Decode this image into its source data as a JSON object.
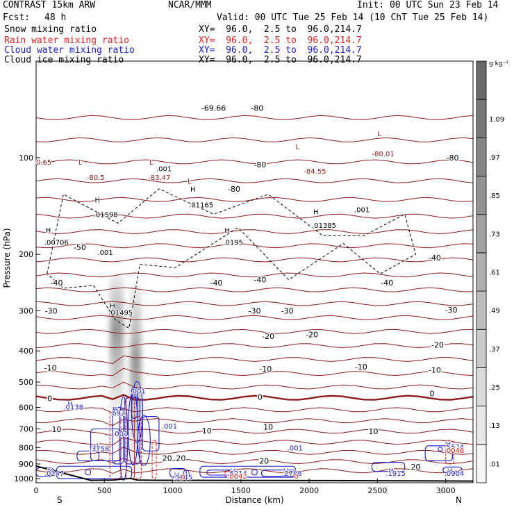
{
  "header": {
    "model": "CONTRAST 15km ARW",
    "center": "NCAR/MMM",
    "init": "Init: 00 UTC Sun 23 Feb 14",
    "fcst_label": "Fcst:",
    "fcst_value": "48 h",
    "valid": "Valid: 00 UTC Tue 25 Feb 14 (10 ChT Tue 25 Feb 14)"
  },
  "legend": [
    {
      "label": "Snow mixing ratio",
      "xy": "XY=  96.0,  2.5 to  96.0,214.7",
      "color": "#000000"
    },
    {
      "label": "Rain water mixing ratio",
      "xy": "XY=  96.0,  2.5 to  96.0,214.7",
      "color": "#e02020"
    },
    {
      "label": "Cloud water mixing ratio",
      "xy": "XY=  96.0,  2.5 to  96.0,214.7",
      "color": "#1a1ad0"
    },
    {
      "label": "Cloud ice mixing ratio",
      "xy": "XY=  96.0,  2.5 to  96.0,214.7",
      "color": "#000000"
    }
  ],
  "chart_data": {
    "type": "contour",
    "xlabel": "Distance (km)",
    "ylabel": "Pressure (hPa)",
    "xlim": [
      0,
      3200
    ],
    "ylim": [
      1030,
      50
    ],
    "x_ticks": [
      0,
      500,
      1000,
      1500,
      2000,
      2500,
      3000
    ],
    "y_ticks": [
      100,
      200,
      300,
      400,
      500,
      600,
      700,
      800,
      900,
      1000
    ],
    "x_end_labels": {
      "left": "S",
      "right": "N"
    },
    "colorbar": {
      "unit": "g kg⁻¹",
      "labels": [
        ".01",
        ".13",
        ".25",
        ".37",
        ".49",
        ".61",
        ".73",
        ".85",
        ".97",
        "1.09"
      ]
    },
    "temperature_contours": [
      {
        "label": "-80",
        "x": 1640,
        "p": 105
      },
      {
        "label": "-80",
        "x": 1450,
        "p": 125
      },
      {
        "label": "-80",
        "x": 3050,
        "p": 100
      },
      {
        "label": "-69.66",
        "x": 1300,
        "p": 70
      },
      {
        "label": "-80",
        "x": 1620,
        "p": 70
      },
      {
        "label": "-50",
        "x": 320,
        "p": 190
      },
      {
        "label": "-40",
        "x": 150,
        "p": 245
      },
      {
        "label": "-40",
        "x": 1320,
        "p": 245
      },
      {
        "label": "-40",
        "x": 1640,
        "p": 240
      },
      {
        "label": "-40",
        "x": 2570,
        "p": 245
      },
      {
        "label": "-40",
        "x": 2920,
        "p": 205
      },
      {
        "label": "-30",
        "x": 110,
        "p": 300
      },
      {
        "label": "-30",
        "x": 1600,
        "p": 300
      },
      {
        "label": "-30",
        "x": 1840,
        "p": 300
      },
      {
        "label": "-30",
        "x": 3040,
        "p": 298
      },
      {
        "label": "-20",
        "x": 1700,
        "p": 360
      },
      {
        "label": "-20",
        "x": 2020,
        "p": 355
      },
      {
        "label": "-20",
        "x": 2940,
        "p": 383
      },
      {
        "label": "-10",
        "x": 105,
        "p": 452
      },
      {
        "label": "-10",
        "x": 1680,
        "p": 455
      },
      {
        "label": "-10",
        "x": 2380,
        "p": 448
      },
      {
        "label": "-10",
        "x": 2920,
        "p": 458
      },
      {
        "label": "0",
        "x": 100,
        "p": 562
      },
      {
        "label": "0",
        "x": 1640,
        "p": 557
      },
      {
        "label": "0",
        "x": 2900,
        "p": 543
      },
      {
        "label": "10",
        "x": 150,
        "p": 702
      },
      {
        "label": "10",
        "x": 1250,
        "p": 708
      },
      {
        "label": "10",
        "x": 1700,
        "p": 690
      },
      {
        "label": "10",
        "x": 2470,
        "p": 712
      },
      {
        "label": "20",
        "x": 960,
        "p": 864
      },
      {
        "label": "20",
        "x": 1060,
        "p": 864
      },
      {
        "label": "20",
        "x": 1670,
        "p": 880
      },
      {
        "label": "20",
        "x": 2780,
        "p": 918
      }
    ],
    "annotations": [
      {
        "text": "-80.5",
        "x": 370,
        "p": 115,
        "color": "#8b1a1a"
      },
      {
        "text": "-83.47",
        "x": 820,
        "p": 115,
        "color": "#8b1a1a"
      },
      {
        "text": "-84.55",
        "x": 1960,
        "p": 110,
        "color": "#8b1a1a"
      },
      {
        "text": "-80.01",
        "x": 2460,
        "p": 97,
        "color": "#8b1a1a"
      },
      {
        "text": "L",
        "x": 310,
        "p": 103,
        "color": "#8b1a1a"
      },
      {
        "text": "L",
        "x": 1900,
        "p": 92,
        "color": "#8b1a1a"
      },
      {
        "text": "L",
        "x": 2500,
        "p": 84,
        "color": "#8b1a1a"
      },
      {
        "text": "L",
        "x": 830,
        "p": 103,
        "color": "#8b1a1a"
      },
      {
        "text": "L",
        "x": 1110,
        "p": 118,
        "color": "#8b1a1a"
      },
      {
        "text": "H",
        "x": 430,
        "p": 135,
        "color": "#000000"
      },
      {
        "text": ".01598",
        "x": 420,
        "p": 150,
        "color": "#000000"
      },
      {
        "text": "H",
        "x": 1130,
        "p": 125,
        "color": "#000000"
      },
      {
        "text": ".01165",
        "x": 1120,
        "p": 140,
        "color": "#000000"
      },
      {
        "text": "H",
        "x": 70,
        "p": 168,
        "color": "#000000"
      },
      {
        "text": ".00706",
        "x": 60,
        "p": 183,
        "color": "#000000"
      },
      {
        "text": "H",
        "x": 1380,
        "p": 168,
        "color": "#000000"
      },
      {
        "text": ".0195",
        "x": 1370,
        "p": 183,
        "color": "#000000"
      },
      {
        "text": "H",
        "x": 2030,
        "p": 147,
        "color": "#000000"
      },
      {
        "text": ".01385",
        "x": 2020,
        "p": 162,
        "color": "#000000"
      },
      {
        "text": ".001",
        "x": 450,
        "p": 197,
        "color": "#000000"
      },
      {
        "text": ".001",
        "x": 880,
        "p": 108,
        "color": "#000000"
      },
      {
        "text": ".001",
        "x": 2330,
        "p": 145,
        "color": "#000000"
      },
      {
        "text": "H",
        "x": 540,
        "p": 288,
        "color": "#000000"
      },
      {
        "text": ".01495",
        "x": 530,
        "p": 303,
        "color": "#000000"
      },
      {
        "text": "0.65",
        "x": 0,
        "p": 103,
        "color": "#8b1a1a"
      },
      {
        "text": ".001",
        "x": 690,
        "p": 532,
        "color": "#1a1ad0"
      },
      {
        "text": "H",
        "x": 230,
        "p": 583,
        "color": "#1a1ad0"
      },
      {
        "text": ".0138",
        "x": 200,
        "p": 597,
        "color": "#1a1ad0"
      },
      {
        "text": "H",
        "x": 560,
        "p": 607,
        "color": "#1a1ad0"
      },
      {
        "text": ".692",
        "x": 540,
        "p": 622,
        "color": "#1a1ad0"
      },
      {
        "text": ".001",
        "x": 920,
        "p": 685,
        "color": "#1a1ad0"
      },
      {
        "text": ".001",
        "x": 560,
        "p": 723,
        "color": "#1a1ad0"
      },
      {
        "text": "H",
        "x": 420,
        "p": 790,
        "color": "#1a1ad0"
      },
      {
        "text": ".3758",
        "x": 390,
        "p": 805,
        "color": "#1a1ad0"
      },
      {
        "text": ".001",
        "x": 1840,
        "p": 800,
        "color": "#1a1ad0"
      },
      {
        "text": "H",
        "x": 3000,
        "p": 780,
        "color": "#1a1ad0"
      },
      {
        "text": ".5574",
        "x": 2990,
        "p": 795,
        "color": "#1a1ad0"
      },
      {
        "text": ".0046",
        "x": 2990,
        "p": 815,
        "color": "#e02020"
      },
      {
        "text": "H",
        "x": 1010,
        "p": 973,
        "color": "#1a1ad0"
      },
      {
        "text": ".3145",
        "x": 1000,
        "p": 988,
        "color": "#1a1ad0"
      },
      {
        "text": "H",
        "x": 1420,
        "p": 945,
        "color": "#1a1ad0"
      },
      {
        "text": ".6214",
        "x": 1400,
        "p": 960,
        "color": "#1a1ad0"
      },
      {
        "text": ".0042",
        "x": 1400,
        "p": 980,
        "color": "#e02020"
      },
      {
        "text": "H",
        "x": 1810,
        "p": 945,
        "color": "#1a1ad0"
      },
      {
        "text": ".2788",
        "x": 1800,
        "p": 960,
        "color": "#1a1ad0"
      },
      {
        "text": "0",
        "x": 1890,
        "p": 980,
        "color": "#e02020"
      },
      {
        "text": "H",
        "x": 80,
        "p": 945,
        "color": "#1a1ad0"
      },
      {
        "text": ".0247",
        "x": 60,
        "p": 960,
        "color": "#1a1ad0"
      },
      {
        "text": "H",
        "x": 2580,
        "p": 945,
        "color": "#1a1ad0"
      },
      {
        "text": ".1915",
        "x": 2560,
        "p": 960,
        "color": "#1a1ad0"
      },
      {
        "text": "H",
        "x": 3010,
        "p": 945,
        "color": "#1a1ad0"
      },
      {
        "text": ".0904",
        "x": 2990,
        "p": 960,
        "color": "#1a1ad0"
      },
      {
        "text": "0",
        "x": 1060,
        "p": 988,
        "color": "#e02020"
      }
    ]
  }
}
